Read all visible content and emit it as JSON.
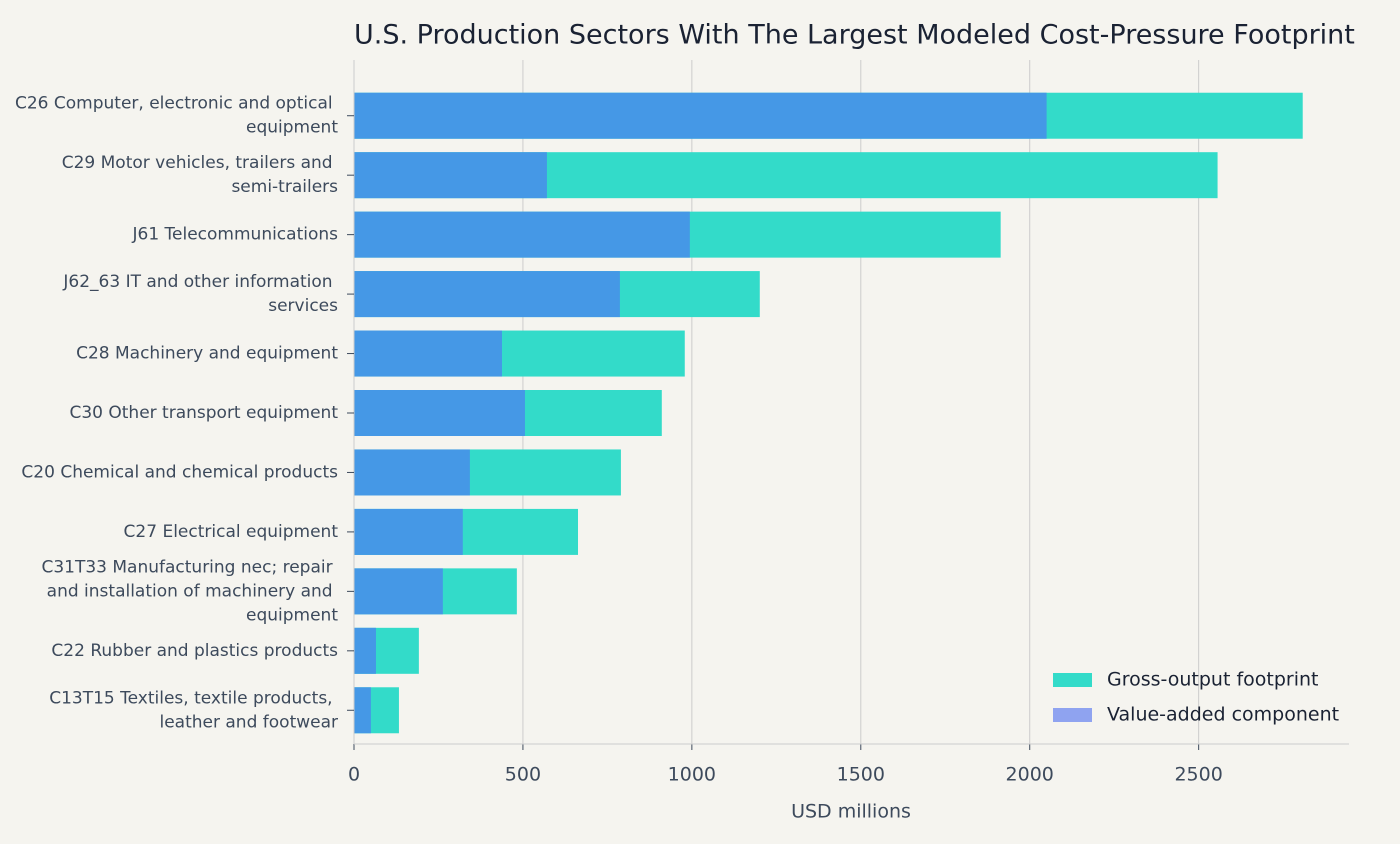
{
  "chart_data": {
    "type": "overlap_barh",
    "title": "U.S. Production Sectors With The Largest Modeled Cost-Pressure Footprint",
    "xlabel": "USD millions",
    "categories": [
      "C26 Computer, electronic and optical equipment",
      "C29 Motor vehicles, trailers and semi-trailers",
      "J61 Telecommunications",
      "J62_63 IT and other information services",
      "C28 Machinery and equipment",
      "C30 Other transport equipment",
      "C20 Chemical and chemical products",
      "C27 Electrical equipment",
      "C31T33 Manufacturing nec; repair and installation of machinery and equipment",
      "C22 Rubber and plastics products",
      "C13T15 Textiles, textile products, leather and footwear"
    ],
    "series": [
      {
        "name": "Gross-output footprint",
        "color": "#33dbc9",
        "values": [
          2808,
          2556,
          1914,
          1201,
          979,
          911,
          790,
          663,
          482,
          192,
          133
        ]
      },
      {
        "name": "Value-added component",
        "color": "#4598e6",
        "legend_color": "#8fa3f0",
        "values": [
          2050,
          571,
          994,
          787,
          438,
          506,
          343,
          322,
          263,
          65,
          50
        ]
      }
    ],
    "xlim": [
      0,
      2945
    ],
    "xticks": [
      0,
      500,
      1000,
      1500,
      2000,
      2500
    ],
    "grid": true,
    "legend": "lower right"
  }
}
